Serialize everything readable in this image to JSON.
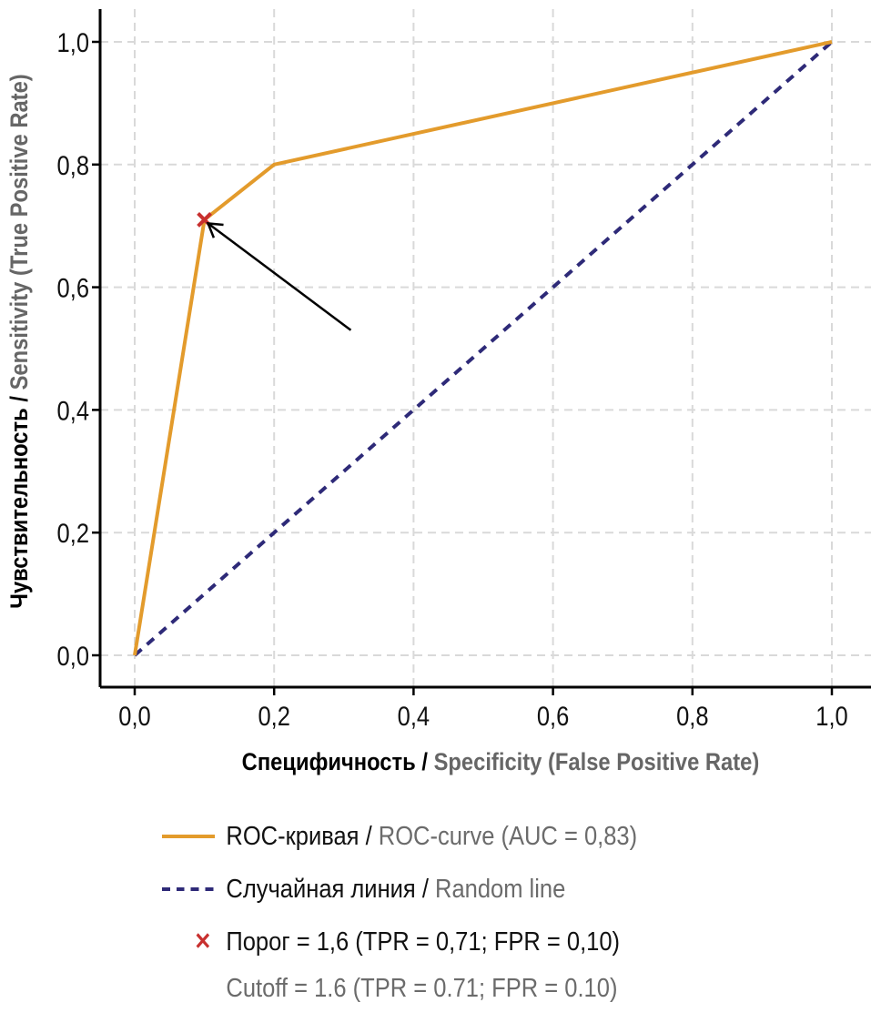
{
  "chart_data": {
    "type": "line",
    "title": "",
    "xlabel": {
      "ru": "Специфичность",
      "separator": " / ",
      "en": "Specificity (False Positive Rate)"
    },
    "ylabel": {
      "ru": "Чувствительность",
      "separator": " / ",
      "en": "Sensitivity (True Positive Rate)"
    },
    "xlim": [
      -0.05,
      1.05
    ],
    "ylim": [
      -0.05,
      1.05
    ],
    "x_ticks": [
      0.0,
      0.2,
      0.4,
      0.6,
      0.8,
      1.0
    ],
    "x_tick_labels": [
      "0,0",
      "0,2",
      "0,4",
      "0,6",
      "0,8",
      "1,0"
    ],
    "y_ticks": [
      0.0,
      0.2,
      0.4,
      0.6,
      0.8,
      1.0
    ],
    "y_tick_labels": [
      "0,0",
      "0,2",
      "0,4",
      "0,6",
      "0,8",
      "1,0"
    ],
    "grid": true,
    "series": [
      {
        "name": "ROC-curve",
        "color": "#e39b2c",
        "style": "solid",
        "x": [
          0.0,
          0.1,
          0.2,
          1.0
        ],
        "y": [
          0.0,
          0.71,
          0.8,
          1.0
        ]
      },
      {
        "name": "Random line",
        "color": "#2e2a78",
        "style": "dashed",
        "x": [
          0.0,
          1.0
        ],
        "y": [
          0.0,
          1.0
        ]
      }
    ],
    "markers": [
      {
        "name": "Cutoff",
        "x": 0.1,
        "y": 0.71,
        "symbol": "x",
        "color": "#c8302f"
      }
    ],
    "annotations": [
      {
        "type": "arrow",
        "from": [
          0.31,
          0.53
        ],
        "to": [
          0.1,
          0.71
        ],
        "color": "#000000"
      }
    ],
    "legend": {
      "placement": "bottom",
      "entries": [
        {
          "ru": "ROC-кривая",
          "separator": " / ",
          "en": "ROC-curve (AUC = 0,83)",
          "swatch": "solid",
          "color": "#e39b2c"
        },
        {
          "ru": "Случайная линия",
          "separator": " / ",
          "en": "Random line",
          "swatch": "dashed",
          "color": "#2e2a78"
        },
        {
          "ru": "Порог = 1,6 (TPR = 0,71; FPR = 0,10)",
          "en": "Cutoff = 1.6 (TPR = 0.71; FPR = 0.10)",
          "swatch": "x",
          "color": "#c8302f"
        }
      ]
    }
  }
}
